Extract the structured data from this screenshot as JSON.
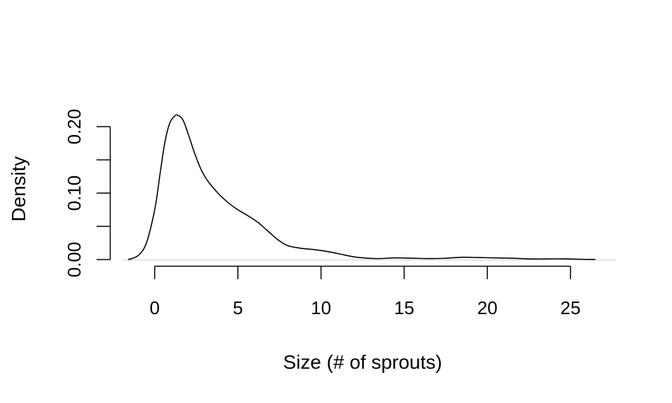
{
  "chart_data": {
    "type": "line",
    "title": "",
    "xlabel": "Size (# of sprouts)",
    "ylabel": "Density",
    "xlim": [
      -1.5,
      26.5
    ],
    "ylim": [
      0,
      0.22
    ],
    "x_ticks": [
      0,
      5,
      10,
      15,
      20,
      25
    ],
    "x_tick_labels": [
      "0",
      "5",
      "10",
      "15",
      "20",
      "25"
    ],
    "y_ticks": [
      0.0,
      0.05,
      0.1,
      0.15,
      0.2
    ],
    "y_tick_labels": [
      "0.00",
      "",
      "0.10",
      "",
      "0.20"
    ],
    "grid": false,
    "legend": null,
    "series": [
      {
        "name": "density",
        "x": [
          -1.6,
          -1.0,
          -0.5,
          0.0,
          0.3,
          0.6,
          0.9,
          1.2,
          1.4,
          1.7,
          2.0,
          2.4,
          2.8,
          3.2,
          3.8,
          4.4,
          5.0,
          5.6,
          6.2,
          6.8,
          7.4,
          8.0,
          8.8,
          9.6,
          10.4,
          11.2,
          12.0,
          12.8,
          13.5,
          14.5,
          15.5,
          16.5,
          17.5,
          18.5,
          19.5,
          20.5,
          21.5,
          22.5,
          23.5,
          24.5,
          25.5,
          26.5
        ],
        "y": [
          0.0,
          0.006,
          0.025,
          0.075,
          0.125,
          0.175,
          0.205,
          0.216,
          0.217,
          0.21,
          0.19,
          0.16,
          0.135,
          0.118,
          0.1,
          0.086,
          0.075,
          0.066,
          0.056,
          0.043,
          0.03,
          0.021,
          0.017,
          0.015,
          0.012,
          0.008,
          0.004,
          0.002,
          0.0015,
          0.0025,
          0.002,
          0.0015,
          0.002,
          0.0035,
          0.003,
          0.0025,
          0.002,
          0.001,
          0.001,
          0.0012,
          0.0005,
          0.0002
        ]
      }
    ]
  }
}
